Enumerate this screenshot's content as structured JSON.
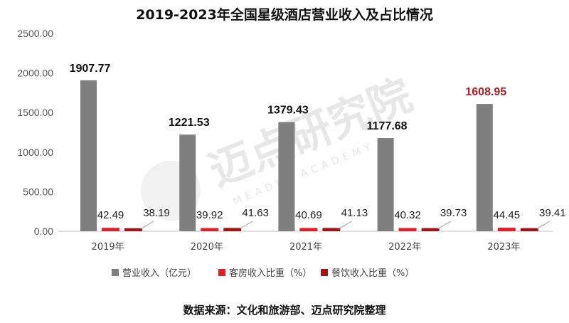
{
  "chart_data": {
    "type": "bar",
    "title": "2019-2023年全国星级酒店营业收入及占比情况",
    "categories": [
      "2019年",
      "2020年",
      "2021年",
      "2022年",
      "2023年"
    ],
    "ylim": [
      0,
      2500
    ],
    "yticks": [
      "0.00",
      "500.00",
      "1000.00",
      "1500.00",
      "2000.00",
      "2500.00"
    ],
    "series": [
      {
        "name": "营业收入（亿元）",
        "color": "#7f7f7f",
        "values": [
          1907.77,
          1221.53,
          1379.43,
          1177.68,
          1608.95
        ],
        "labels": [
          "1907.77",
          "1221.53",
          "1379.43",
          "1177.68",
          "1608.95"
        ],
        "label_colors": [
          "#111111",
          "#111111",
          "#111111",
          "#111111",
          "#b81c22"
        ]
      },
      {
        "name": "客房收入比重（%）",
        "color": "#e41e26",
        "values": [
          42.49,
          39.92,
          40.69,
          40.32,
          44.45
        ],
        "labels": [
          "42.49",
          "39.92",
          "40.69",
          "40.32",
          "44.45"
        ]
      },
      {
        "name": "餐饮收入比重（%）",
        "color": "#a31515",
        "values": [
          38.19,
          41.63,
          41.13,
          39.73,
          39.41
        ],
        "labels": [
          "38.19",
          "41.63",
          "41.13",
          "39.73",
          "39.41"
        ]
      }
    ],
    "legend_position": "bottom",
    "grid": false
  },
  "watermark": {
    "main": "迈点研究院",
    "sub": "MEADIN ACADEMY"
  },
  "source": "数据来源：文化和旅游部、迈点研究院整理"
}
